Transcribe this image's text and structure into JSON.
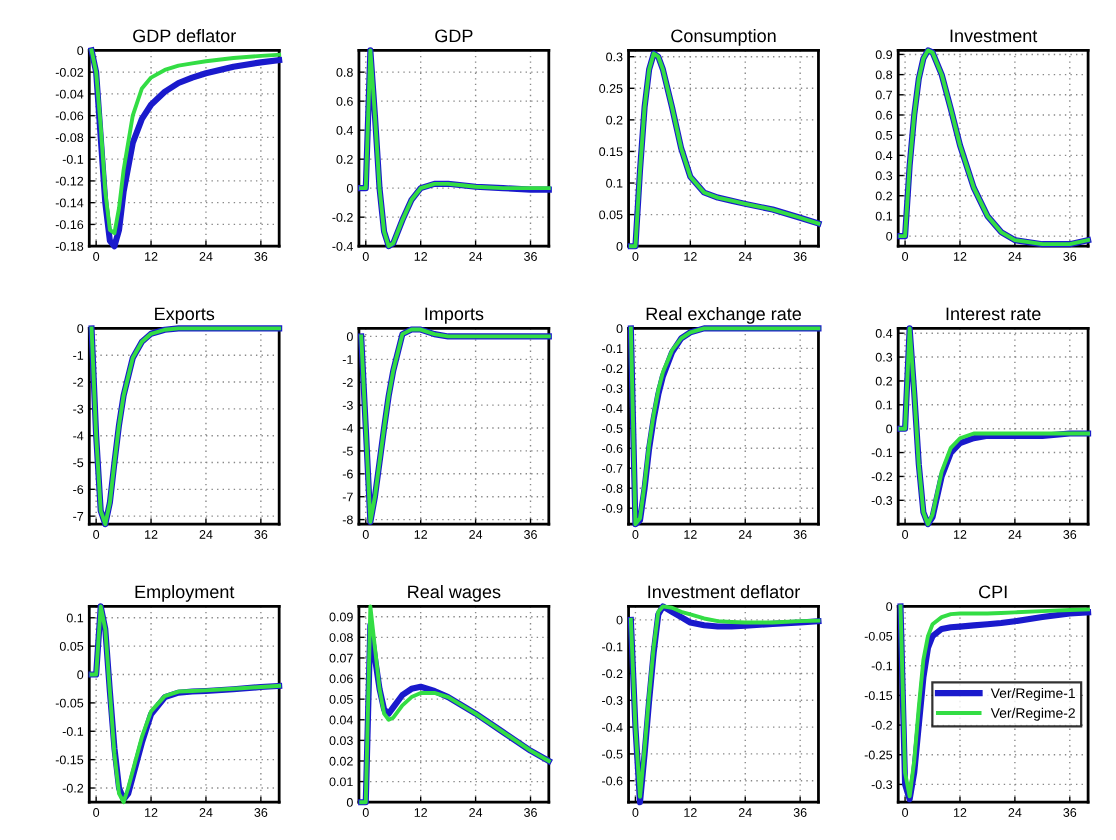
{
  "chart_data": [
    {
      "type": "line",
      "title": "GDP deflator",
      "x": [
        -1,
        0,
        1,
        2,
        3,
        4,
        5,
        6,
        8,
        10,
        12,
        15,
        18,
        21,
        24,
        30,
        36,
        40
      ],
      "xlim": [
        -1.5,
        40
      ],
      "xticks": [
        0,
        12,
        24,
        36
      ],
      "ylim": [
        -0.18,
        0
      ],
      "yticks": [
        -0.18,
        -0.16,
        -0.14,
        -0.12,
        -0.1,
        -0.08,
        -0.06,
        -0.04,
        -0.02,
        0
      ],
      "grid": true,
      "legend": false,
      "series": [
        {
          "color": "#1a1acc",
          "values": [
            0,
            -0.02,
            -0.08,
            -0.14,
            -0.175,
            -0.18,
            -0.165,
            -0.13,
            -0.085,
            -0.063,
            -0.05,
            -0.038,
            -0.03,
            -0.025,
            -0.021,
            -0.015,
            -0.011,
            -0.009
          ]
        },
        {
          "color": "#33dd44",
          "values": [
            0,
            -0.02,
            -0.07,
            -0.13,
            -0.165,
            -0.168,
            -0.145,
            -0.11,
            -0.06,
            -0.035,
            -0.025,
            -0.018,
            -0.014,
            -0.012,
            -0.01,
            -0.007,
            -0.005,
            -0.004
          ]
        }
      ]
    },
    {
      "type": "line",
      "title": "GDP",
      "x": [
        -1,
        0,
        1,
        2,
        3,
        4,
        5,
        6,
        8,
        10,
        12,
        15,
        18,
        21,
        24,
        30,
        36,
        40
      ],
      "xlim": [
        -1.5,
        40
      ],
      "xticks": [
        0,
        12,
        24,
        36
      ],
      "ylim": [
        -0.4,
        0.95
      ],
      "yticks": [
        -0.4,
        -0.2,
        0,
        0.2,
        0.4,
        0.6,
        0.8
      ],
      "grid": true,
      "legend": false,
      "series": [
        {
          "color": "#1a1acc",
          "values": [
            0,
            0,
            0.95,
            0.5,
            0,
            -0.3,
            -0.4,
            -0.38,
            -0.22,
            -0.08,
            0,
            0.03,
            0.03,
            0.02,
            0.01,
            0,
            -0.01,
            -0.01
          ]
        },
        {
          "color": "#33dd44",
          "values": [
            0,
            0,
            0.95,
            0.5,
            0,
            -0.3,
            -0.4,
            -0.38,
            -0.22,
            -0.08,
            0,
            0.03,
            0.03,
            0.02,
            0.01,
            0,
            0,
            0
          ]
        }
      ]
    },
    {
      "type": "line",
      "title": "Consumption",
      "x": [
        -1,
        0,
        1,
        2,
        3,
        4,
        5,
        6,
        8,
        10,
        12,
        15,
        18,
        21,
        24,
        30,
        36,
        40
      ],
      "xlim": [
        -1.5,
        40
      ],
      "xticks": [
        0,
        12,
        24,
        36
      ],
      "ylim": [
        0,
        0.31
      ],
      "yticks": [
        0,
        0.05,
        0.1,
        0.15,
        0.2,
        0.25,
        0.3
      ],
      "grid": true,
      "legend": false,
      "series": [
        {
          "color": "#1a1acc",
          "values": [
            0,
            0,
            0.12,
            0.22,
            0.28,
            0.305,
            0.3,
            0.28,
            0.22,
            0.155,
            0.11,
            0.085,
            0.077,
            0.072,
            0.067,
            0.058,
            0.045,
            0.036
          ]
        },
        {
          "color": "#33dd44",
          "values": [
            0,
            0,
            0.12,
            0.22,
            0.28,
            0.305,
            0.3,
            0.28,
            0.22,
            0.155,
            0.11,
            0.085,
            0.077,
            0.072,
            0.067,
            0.058,
            0.045,
            0.036
          ]
        }
      ]
    },
    {
      "type": "line",
      "title": "Investment",
      "x": [
        -1,
        0,
        1,
        2,
        3,
        4,
        5,
        6,
        8,
        10,
        12,
        15,
        18,
        21,
        24,
        30,
        36,
        40
      ],
      "xlim": [
        -1.5,
        40
      ],
      "xticks": [
        0,
        12,
        24,
        36
      ],
      "ylim": [
        -0.05,
        0.92
      ],
      "yticks": [
        0,
        0.1,
        0.2,
        0.3,
        0.4,
        0.5,
        0.6,
        0.7,
        0.8,
        0.9
      ],
      "grid": true,
      "legend": false,
      "series": [
        {
          "color": "#1a1acc",
          "values": [
            0,
            0,
            0.35,
            0.6,
            0.78,
            0.88,
            0.92,
            0.91,
            0.8,
            0.63,
            0.45,
            0.24,
            0.1,
            0.02,
            -0.02,
            -0.04,
            -0.04,
            -0.02
          ]
        },
        {
          "color": "#33dd44",
          "values": [
            0,
            0,
            0.35,
            0.6,
            0.78,
            0.88,
            0.92,
            0.91,
            0.8,
            0.63,
            0.45,
            0.24,
            0.1,
            0.02,
            -0.02,
            -0.04,
            -0.04,
            -0.02
          ]
        }
      ]
    },
    {
      "type": "line",
      "title": "Exports",
      "x": [
        -1,
        0,
        1,
        2,
        3,
        4,
        5,
        6,
        8,
        10,
        12,
        15,
        18,
        21,
        24,
        30,
        36,
        40
      ],
      "xlim": [
        -1.5,
        40
      ],
      "xticks": [
        0,
        12,
        24,
        36
      ],
      "ylim": [
        -7.3,
        0
      ],
      "yticks": [
        -7,
        -6,
        -5,
        -4,
        -3,
        -2,
        -1,
        0
      ],
      "grid": true,
      "legend": false,
      "series": [
        {
          "color": "#1a1acc",
          "values": [
            0,
            -4,
            -6.8,
            -7.3,
            -6.5,
            -5,
            -3.6,
            -2.5,
            -1.1,
            -0.5,
            -0.2,
            -0.05,
            0,
            0,
            0,
            0,
            0,
            0
          ]
        },
        {
          "color": "#33dd44",
          "values": [
            0,
            -4,
            -6.8,
            -7.3,
            -6.5,
            -5,
            -3.6,
            -2.5,
            -1.1,
            -0.5,
            -0.2,
            -0.05,
            0,
            0,
            0,
            0,
            0,
            0
          ]
        }
      ]
    },
    {
      "type": "line",
      "title": "Imports",
      "x": [
        -1,
        0,
        1,
        2,
        3,
        4,
        5,
        6,
        8,
        10,
        12,
        15,
        18,
        21,
        24,
        30,
        36,
        40
      ],
      "xlim": [
        -1.5,
        40
      ],
      "xticks": [
        0,
        12,
        24,
        36
      ],
      "ylim": [
        -8.2,
        0.35
      ],
      "yticks": [
        -8,
        -7,
        -6,
        -5,
        -4,
        -3,
        -2,
        -1,
        0
      ],
      "grid": true,
      "legend": false,
      "series": [
        {
          "color": "#1a1acc",
          "values": [
            0,
            -4,
            -8.1,
            -7,
            -5.5,
            -4,
            -2.6,
            -1.5,
            0.1,
            0.3,
            0.3,
            0.1,
            0,
            0,
            0,
            0,
            0,
            0
          ]
        },
        {
          "color": "#33dd44",
          "values": [
            0,
            -4,
            -8.1,
            -7,
            -5.5,
            -4,
            -2.6,
            -1.5,
            0.1,
            0.3,
            0.3,
            0.1,
            0,
            0,
            0,
            0,
            0,
            0
          ]
        }
      ]
    },
    {
      "type": "line",
      "title": "Real exchange rate",
      "x": [
        -1,
        0,
        1,
        2,
        3,
        4,
        5,
        6,
        8,
        10,
        12,
        15,
        18,
        21,
        24,
        30,
        36,
        40
      ],
      "xlim": [
        -1.5,
        40
      ],
      "xticks": [
        0,
        12,
        24,
        36
      ],
      "ylim": [
        -0.98,
        0
      ],
      "yticks": [
        -0.9,
        -0.8,
        -0.7,
        -0.6,
        -0.5,
        -0.4,
        -0.3,
        -0.2,
        -0.1,
        0
      ],
      "grid": true,
      "legend": false,
      "series": [
        {
          "color": "#1a1acc",
          "values": [
            0,
            -0.98,
            -0.96,
            -0.8,
            -0.6,
            -0.45,
            -0.33,
            -0.24,
            -0.12,
            -0.05,
            -0.02,
            0,
            0,
            0,
            0,
            0,
            0,
            0
          ]
        },
        {
          "color": "#33dd44",
          "values": [
            0,
            -0.98,
            -0.95,
            -0.78,
            -0.58,
            -0.43,
            -0.31,
            -0.22,
            -0.11,
            -0.05,
            -0.02,
            0,
            0,
            0,
            0,
            0,
            0,
            0
          ]
        }
      ]
    },
    {
      "type": "line",
      "title": "Interest rate",
      "x": [
        -1,
        0,
        1,
        2,
        3,
        4,
        5,
        6,
        8,
        10,
        12,
        15,
        18,
        21,
        24,
        30,
        36,
        40
      ],
      "xlim": [
        -1.5,
        40
      ],
      "xticks": [
        0,
        12,
        24,
        36
      ],
      "ylim": [
        -0.4,
        0.42
      ],
      "yticks": [
        -0.3,
        -0.2,
        -0.1,
        0,
        0.1,
        0.2,
        0.3,
        0.4
      ],
      "grid": true,
      "legend": false,
      "series": [
        {
          "color": "#1a1acc",
          "values": [
            0,
            0,
            0.42,
            0.15,
            -0.15,
            -0.35,
            -0.4,
            -0.37,
            -0.2,
            -0.1,
            -0.06,
            -0.04,
            -0.03,
            -0.03,
            -0.03,
            -0.03,
            -0.02,
            -0.02
          ]
        },
        {
          "color": "#33dd44",
          "values": [
            0,
            0,
            0.42,
            0.15,
            -0.15,
            -0.35,
            -0.4,
            -0.36,
            -0.18,
            -0.08,
            -0.04,
            -0.02,
            -0.02,
            -0.02,
            -0.02,
            -0.02,
            -0.02,
            -0.02
          ]
        }
      ]
    },
    {
      "type": "line",
      "title": "Employment",
      "x": [
        -1,
        0,
        1,
        2,
        3,
        4,
        5,
        6,
        7,
        8,
        10,
        12,
        15,
        18,
        21,
        24,
        30,
        36,
        40
      ],
      "xlim": [
        -1.5,
        40
      ],
      "xticks": [
        0,
        12,
        24,
        36
      ],
      "ylim": [
        -0.225,
        0.12
      ],
      "yticks": [
        -0.2,
        -0.15,
        -0.1,
        -0.05,
        0,
        0.05,
        0.1
      ],
      "grid": true,
      "legend": false,
      "series": [
        {
          "color": "#1a1acc",
          "values": [
            0,
            0,
            0.12,
            0.08,
            -0.03,
            -0.13,
            -0.2,
            -0.22,
            -0.21,
            -0.18,
            -0.12,
            -0.07,
            -0.04,
            -0.032,
            -0.03,
            -0.029,
            -0.026,
            -0.022,
            -0.02
          ]
        },
        {
          "color": "#33dd44",
          "values": [
            0,
            0,
            0.12,
            0.08,
            -0.03,
            -0.14,
            -0.21,
            -0.225,
            -0.2,
            -0.17,
            -0.11,
            -0.065,
            -0.038,
            -0.03,
            -0.029,
            -0.028,
            -0.025,
            -0.022,
            -0.02
          ]
        }
      ]
    },
    {
      "type": "line",
      "title": "Real wages",
      "x": [
        -1,
        0,
        1,
        2,
        3,
        4,
        5,
        6,
        8,
        10,
        12,
        15,
        18,
        21,
        24,
        30,
        36,
        40
      ],
      "xlim": [
        -1.5,
        40
      ],
      "xticks": [
        0,
        12,
        24,
        36
      ],
      "ylim": [
        0,
        0.095
      ],
      "yticks": [
        0,
        0.01,
        0.02,
        0.03,
        0.04,
        0.05,
        0.06,
        0.07,
        0.08,
        0.09
      ],
      "grid": true,
      "legend": false,
      "series": [
        {
          "color": "#1a1acc",
          "values": [
            0,
            0,
            0.086,
            0.07,
            0.055,
            0.045,
            0.043,
            0.046,
            0.052,
            0.055,
            0.056,
            0.054,
            0.051,
            0.047,
            0.043,
            0.034,
            0.025,
            0.02
          ]
        },
        {
          "color": "#33dd44",
          "values": [
            0,
            0,
            0.095,
            0.075,
            0.055,
            0.043,
            0.04,
            0.041,
            0.047,
            0.051,
            0.053,
            0.053,
            0.051,
            0.047,
            0.043,
            0.034,
            0.025,
            0.02
          ]
        }
      ]
    },
    {
      "type": "line",
      "title": "Investment deflator",
      "x": [
        -1,
        0,
        1,
        2,
        3,
        4,
        5,
        6,
        8,
        10,
        12,
        15,
        18,
        21,
        24,
        30,
        36,
        40
      ],
      "xlim": [
        -1.5,
        40
      ],
      "xticks": [
        0,
        12,
        24,
        36
      ],
      "ylim": [
        -0.68,
        0.05
      ],
      "yticks": [
        -0.6,
        -0.5,
        -0.4,
        -0.3,
        -0.2,
        -0.1,
        0
      ],
      "grid": true,
      "legend": false,
      "series": [
        {
          "color": "#1a1acc",
          "values": [
            0,
            -0.4,
            -0.68,
            -0.5,
            -0.3,
            -0.12,
            0.02,
            0.05,
            0.03,
            0.01,
            -0.01,
            -0.02,
            -0.025,
            -0.025,
            -0.022,
            -0.015,
            -0.01,
            -0.005
          ]
        },
        {
          "color": "#33dd44",
          "values": [
            0,
            -0.4,
            -0.66,
            -0.48,
            -0.28,
            -0.1,
            0.03,
            0.05,
            0.045,
            0.03,
            0.02,
            0.005,
            -0.005,
            -0.008,
            -0.01,
            -0.01,
            -0.005,
            -0.003
          ]
        }
      ]
    },
    {
      "type": "line",
      "title": "CPI",
      "x": [
        -1,
        0,
        1,
        2,
        3,
        4,
        5,
        6,
        8,
        10,
        12,
        15,
        18,
        21,
        24,
        30,
        36,
        40
      ],
      "xlim": [
        -1.5,
        40
      ],
      "xticks": [
        0,
        12,
        24,
        36
      ],
      "ylim": [
        -0.33,
        0
      ],
      "yticks": [
        -0.3,
        -0.25,
        -0.2,
        -0.15,
        -0.1,
        -0.05,
        0
      ],
      "grid": true,
      "legend": "right",
      "series": [
        {
          "name": "Ver/Regime-1",
          "color": "#1a1acc",
          "values": [
            0,
            -0.3,
            -0.325,
            -0.28,
            -0.2,
            -0.12,
            -0.07,
            -0.05,
            -0.038,
            -0.035,
            -0.034,
            -0.032,
            -0.03,
            -0.028,
            -0.025,
            -0.018,
            -0.012,
            -0.01
          ]
        },
        {
          "name": "Ver/Regime-2",
          "color": "#33dd44",
          "values": [
            0,
            -0.28,
            -0.32,
            -0.26,
            -0.17,
            -0.09,
            -0.05,
            -0.03,
            -0.018,
            -0.013,
            -0.012,
            -0.012,
            -0.012,
            -0.011,
            -0.01,
            -0.008,
            -0.006,
            -0.005
          ]
        }
      ]
    }
  ]
}
